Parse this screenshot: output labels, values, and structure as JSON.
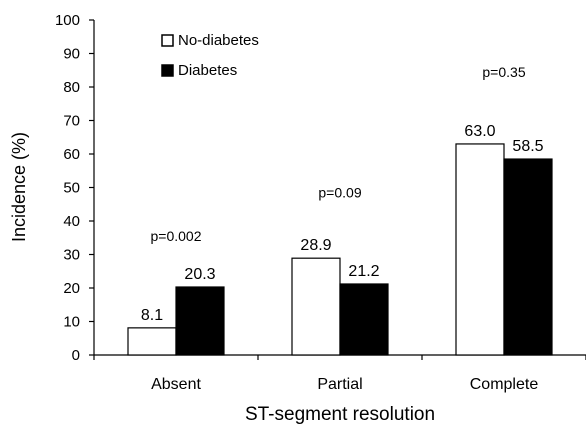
{
  "chart_data": {
    "type": "bar",
    "xlabel": "ST-segment resolution",
    "ylabel": "Incidence (%)",
    "ylim": [
      0,
      100
    ],
    "yticks": [
      0,
      10,
      20,
      30,
      40,
      50,
      60,
      70,
      80,
      90,
      100
    ],
    "grid": false,
    "legend_placement": "top-left",
    "categories": [
      "Absent",
      "Partial",
      "Complete"
    ],
    "series": [
      {
        "name": "No-diabetes",
        "values": [
          8.1,
          28.9,
          63.0
        ],
        "labels": [
          "8.1",
          "28.9",
          "63.0"
        ],
        "color": "#ffffff"
      },
      {
        "name": "Diabetes",
        "values": [
          20.3,
          21.2,
          58.5
        ],
        "labels": [
          "20.3",
          "21.2",
          "58.5"
        ],
        "color": "#000000"
      }
    ],
    "annotations": [
      {
        "category": "Absent",
        "text": "p=0.002",
        "y": 35.5
      },
      {
        "category": "Partial",
        "text": "p=0.09",
        "y": 48.5
      },
      {
        "category": "Complete",
        "text": "p=0.35",
        "y": 84.5
      }
    ]
  }
}
